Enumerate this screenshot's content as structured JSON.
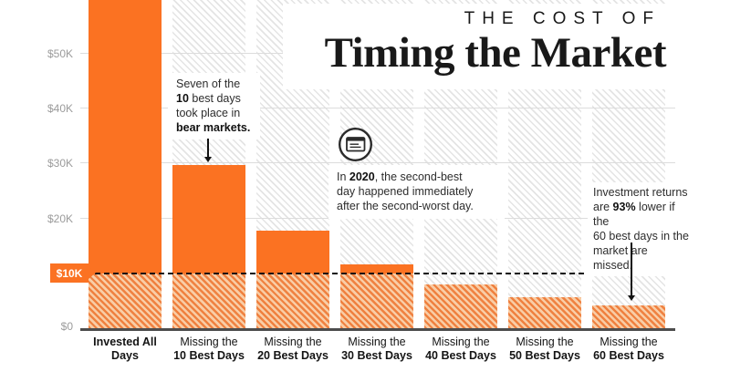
{
  "title": {
    "kicker": "THE COST OF",
    "main": "Timing the Market"
  },
  "chart_data": {
    "type": "bar",
    "title": "The Cost of Timing the Market",
    "categories": [
      "Invested All Days",
      "Missing the 10 Best Days",
      "Missing the 20 Best Days",
      "Missing the 30 Best Days",
      "Missing the 40 Best Days",
      "Missing the 50 Best Days",
      "Missing the 60 Best Days"
    ],
    "values": [
      62000,
      29700,
      17800,
      11700,
      8000,
      5700,
      4200
    ],
    "first_bar_clipped_at_top": true,
    "ylim": [
      0,
      60000
    ],
    "grid": "horizontal",
    "initial_investment_reference_line": 10000,
    "y_ticks": [
      {
        "label": "$50K",
        "value": 50000
      },
      {
        "label": "$40K",
        "value": 40000
      },
      {
        "label": "$30K",
        "value": 30000
      },
      {
        "label": "$20K",
        "value": 20000
      },
      {
        "label": "$10K",
        "value": 10000,
        "badge": true
      },
      {
        "label": "$0",
        "value": 0
      }
    ],
    "x_tick_lines": [
      [
        "Invested All Days"
      ],
      [
        "Missing the",
        "10 Best Days"
      ],
      [
        "Missing the",
        "20 Best Days"
      ],
      [
        "Missing the",
        "30 Best Days"
      ],
      [
        "Missing the",
        "40 Best Days"
      ],
      [
        "Missing the",
        "50 Best Days"
      ],
      [
        "Missing the",
        "60 Best Days"
      ]
    ]
  },
  "annotations": [
    {
      "id": "ann1",
      "lines": [
        [
          {
            "t": "Seven of the"
          }
        ],
        [
          {
            "t": "10",
            "b": true
          },
          {
            "t": " best days"
          }
        ],
        [
          {
            "t": "took place in"
          }
        ],
        [
          {
            "t": "bear markets.",
            "b": true
          }
        ]
      ]
    },
    {
      "id": "ann2",
      "lines": [
        [
          {
            "t": "In "
          },
          {
            "t": "2020",
            "b": true
          },
          {
            "t": ", the second-best"
          }
        ],
        [
          {
            "t": "day happened immediately"
          }
        ],
        [
          {
            "t": "after the second-worst day."
          }
        ]
      ]
    },
    {
      "id": "ann3",
      "lines": [
        [
          {
            "t": "Investment returns"
          }
        ],
        [
          {
            "t": "are "
          },
          {
            "t": "93%",
            "b": true
          },
          {
            "t": " lower if the"
          }
        ],
        [
          {
            "t": "60 best days in the"
          }
        ],
        [
          {
            "t": "market are missed."
          }
        ]
      ]
    }
  ],
  "icons": [
    {
      "name": "calendar-icon"
    }
  ],
  "colors": {
    "bar_orange": "#FB7222",
    "bar_hatch_stripe": "#EF8140",
    "bar_hatch_bg": "#F9CDA6",
    "track_hatch": "#E4E4E4",
    "dashed_line": "#121212",
    "badge_bg": "#FB7222",
    "badge_text": "#FFFFFF",
    "grid": "#DCDCDC",
    "axis_label_gray": "#9B9B9B",
    "ink": "#191919"
  }
}
